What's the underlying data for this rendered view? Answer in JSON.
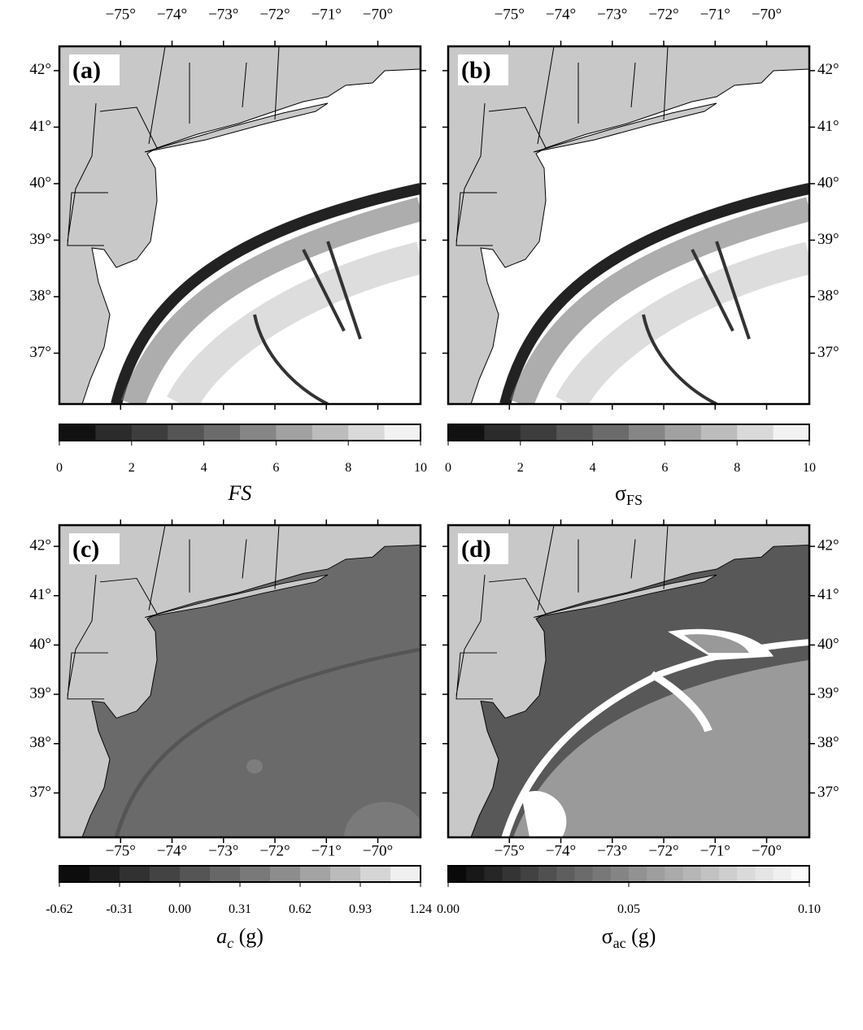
{
  "map_extent": {
    "xlim": [
      -76.19,
      -69.17
    ],
    "ylim": [
      36.1,
      42.43
    ]
  },
  "lon_ticks": [
    {
      "value": -75,
      "label": "−75°"
    },
    {
      "value": -74,
      "label": "−74°"
    },
    {
      "value": -73,
      "label": "−73°"
    },
    {
      "value": -72,
      "label": "−72°"
    },
    {
      "value": -71,
      "label": "−71°"
    },
    {
      "value": -70,
      "label": "−70°"
    }
  ],
  "lat_ticks": [
    {
      "value": 42,
      "label": "42°"
    },
    {
      "value": 41,
      "label": "41°"
    },
    {
      "value": 40,
      "label": "40°"
    },
    {
      "value": 39,
      "label": "39°"
    },
    {
      "value": 38,
      "label": "38°"
    },
    {
      "value": 37,
      "label": "37°"
    }
  ],
  "panels": [
    {
      "label": "(a)",
      "colorbar": {
        "lim": [
          0,
          10
        ],
        "ticks": [
          0,
          2,
          4,
          6,
          8,
          10
        ],
        "colors": [
          "#111111",
          "#2b2b2b",
          "#3d3d3d",
          "#555555",
          "#6b6b6b",
          "#868686",
          "#a1a1a1",
          "#bcbcbc",
          "#d9d9d9",
          "#f2f2f2"
        ],
        "label": {
          "symbol": "FS"
        }
      }
    },
    {
      "label": "(b)",
      "colorbar": {
        "lim": [
          0,
          10
        ],
        "ticks": [
          0,
          2,
          4,
          6,
          8,
          10
        ],
        "colors": [
          "#111111",
          "#2b2b2b",
          "#3d3d3d",
          "#555555",
          "#6b6b6b",
          "#868686",
          "#a1a1a1",
          "#bcbcbc",
          "#d9d9d9",
          "#f2f2f2"
        ],
        "label": {
          "symbol": "σ",
          "subscript": "FS"
        }
      }
    },
    {
      "label": "(c)",
      "colorbar": {
        "lim": [
          -0.62,
          1.24
        ],
        "ticks": [
          -0.62,
          -0.31,
          {
            "value": 0,
            "label": "0.00"
          },
          0.31,
          0.62,
          0.93,
          1.24
        ],
        "colors": [
          "#0d0d0d",
          "#1f1f1f",
          "#313131",
          "#434343",
          "#555555",
          "#676767",
          "#797979",
          "#8d8d8d",
          "#a3a3a3",
          "#bbbbbb",
          "#d5d5d5",
          "#f0f0f0"
        ],
        "label": {
          "symbol": "a",
          "subscript": "c",
          "suffix": " (g)"
        }
      }
    },
    {
      "label": "(d)",
      "colorbar": {
        "lim": [
          0,
          0.1
        ],
        "ticks": [
          {
            "value": 0,
            "label": "0.00"
          },
          0.05,
          {
            "value": 0.1,
            "label": "0.10"
          }
        ],
        "colors": [
          "#0a0a0a",
          "#181818",
          "#262626",
          "#343434",
          "#424242",
          "#505050",
          "#5e5e5e",
          "#6b6b6b",
          "#787878",
          "#858585",
          "#929292",
          "#9e9e9e",
          "#aaaaaa",
          "#b6b6b6",
          "#c2c2c2",
          "#cecece",
          "#dadada",
          "#e5e5e5",
          "#f0f0f0",
          "#fafafa"
        ],
        "label": {
          "symbol": "σ",
          "subscript": "ac",
          "suffix": " (g)"
        }
      }
    }
  ]
}
